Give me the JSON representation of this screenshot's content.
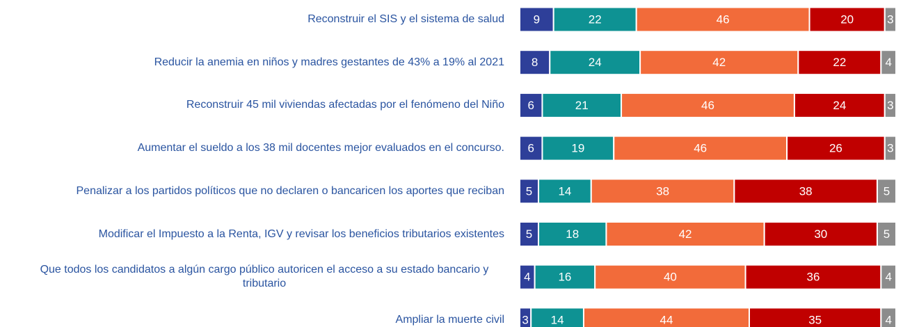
{
  "chart_data": {
    "type": "stacked-bar-horizontal",
    "categories": [
      "Reconstruir el SIS y el sistema de salud",
      "Reducir la anemia en niños y madres gestantes de 43% a 19% al 2021",
      "Reconstruir 45 mil viviendas afectadas por el fenómeno del Niño",
      "Aumentar el sueldo a los 38 mil docentes mejor evaluados en el concurso.",
      "Penalizar a los partidos políticos que no declaren o bancaricen los aportes que reciban",
      "Modificar el Impuesto a la Renta, IGV y revisar los beneficios tributarios existentes",
      "Que todos los candidatos a algún cargo público autoricen el acceso a su estado bancario y tributario",
      "Ampliar la muerte civil"
    ],
    "series": [
      {
        "color": "#2e3f99",
        "values": [
          9,
          8,
          6,
          6,
          5,
          5,
          4,
          3
        ]
      },
      {
        "color": "#0e9293",
        "values": [
          22,
          24,
          21,
          19,
          14,
          18,
          16,
          14
        ]
      },
      {
        "color": "#f26b3a",
        "values": [
          46,
          42,
          46,
          46,
          38,
          42,
          40,
          44
        ]
      },
      {
        "color": "#c00000",
        "values": [
          20,
          22,
          24,
          26,
          38,
          30,
          36,
          35
        ]
      },
      {
        "color": "#8c8c8c",
        "values": [
          3,
          4,
          3,
          3,
          5,
          5,
          4,
          4
        ]
      }
    ],
    "xlim": [
      0,
      100
    ]
  }
}
